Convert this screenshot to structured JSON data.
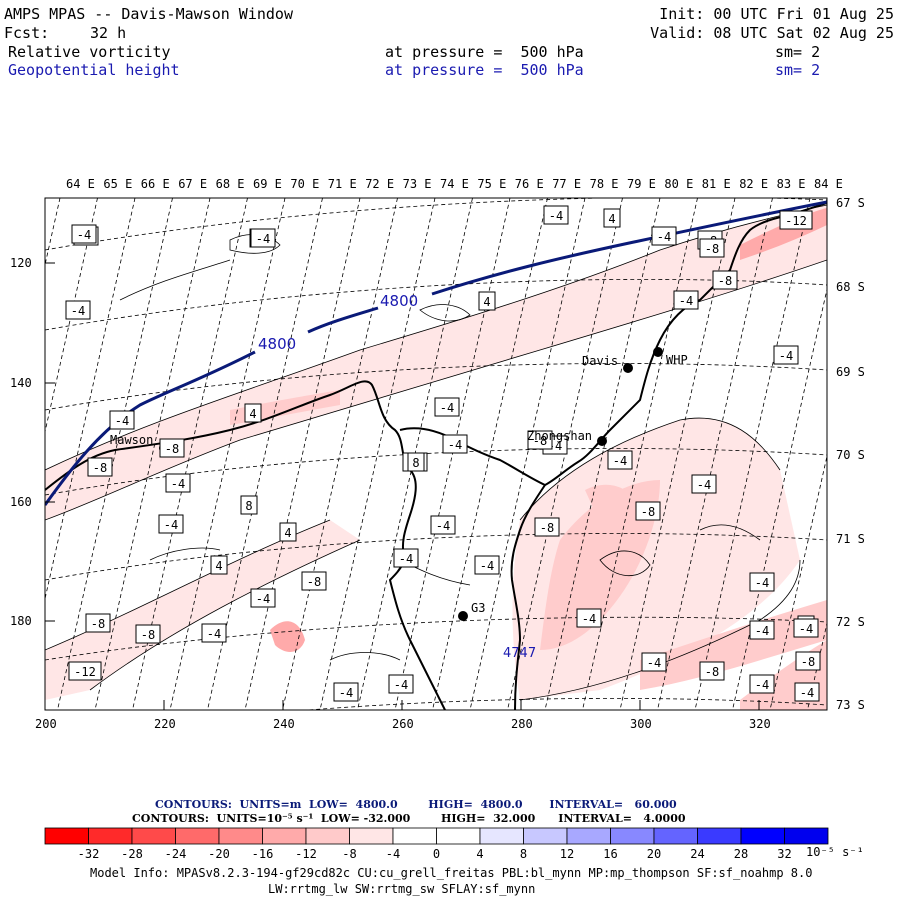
{
  "header": {
    "title": "AMPS MPAS -- Davis-Mawson Window",
    "fcst_label": "Fcst:",
    "fcst_value": "32 h",
    "init": "Init: 00 UTC Fri 01 Aug 25",
    "valid": "Valid: 08 UTC Sat 02 Aug 25",
    "field1": "Relative vorticity",
    "field2": "Geopotential height",
    "pressure_text": "at pressure =  500 hPa",
    "sm_text": "sm= 2"
  },
  "map": {
    "lon_labels": [
      "64 E",
      "65 E",
      "66 E",
      "67 E",
      "68 E",
      "69 E",
      "70 E",
      "71 E",
      "72 E",
      "73 E",
      "74 E",
      "75 E",
      "76 E",
      "77 E",
      "78 E",
      "79 E",
      "80 E",
      "81 E",
      "82 E",
      "83 E",
      "84 E"
    ],
    "lat_labels": [
      "67 S",
      "68 S",
      "69 S",
      "70 S",
      "71 S",
      "72 S",
      "73 S"
    ],
    "x_ticks": [
      "200",
      "220",
      "240",
      "260",
      "280",
      "300",
      "320"
    ],
    "y_ticks": [
      "120",
      "140",
      "160",
      "180"
    ],
    "stations": [
      {
        "name": "Mawson"
      },
      {
        "name": "Davis"
      },
      {
        "name": "WHP"
      },
      {
        "name": "Zhongshan"
      },
      {
        "name": "G3"
      }
    ],
    "height_labels": [
      "4800",
      "4800",
      "4747"
    ],
    "vort_labels": [
      "-4",
      "-4",
      "-4",
      "4",
      "-4",
      "4",
      "-8",
      "-12",
      "-4",
      "-8",
      "-4",
      "-4",
      "-4",
      "4",
      "-4",
      "-4",
      "-8",
      "-4",
      "-8",
      "-4",
      "-4",
      "-4",
      "8",
      "-4",
      "4",
      "-8",
      "-8",
      "-4",
      "4",
      "-4",
      "-4",
      "-8",
      "-4",
      "-4",
      "-8",
      "-4",
      "-8",
      "-4",
      "4",
      "-4",
      "-8",
      "-4",
      "-12",
      "-8",
      "-4",
      "-4",
      "-4",
      "-4",
      "8",
      "-8",
      "-4",
      "-8",
      "-4",
      "-4",
      "-4"
    ],
    "colors": {
      "height_contour": "#0a1a78",
      "coast": "#000000",
      "shade_light": "#ffe6e6",
      "shade_mid": "#ffcccc",
      "shade_dark": "#ffa8a8"
    }
  },
  "footer": {
    "contours1": "CONTOURS:  UNITS=m  LOW=  4800.0        HIGH=  4800.0       INTERVAL=   60.000",
    "contours2": "CONTOURS:  UNITS=10⁻⁵ s⁻¹  LOW= -32.000        HIGH=  32.000      INTERVAL=   4.0000",
    "colorbar_labels": [
      "-32",
      "-28",
      "-24",
      "-20",
      "-16",
      "-12",
      "-8",
      "-4",
      "0",
      "4",
      "8",
      "12",
      "16",
      "20",
      "24",
      "28",
      "32"
    ],
    "colorbar_unit": "10⁻⁵ s⁻¹",
    "colorbar_colors": [
      "#ff0000",
      "#ff2a2a",
      "#ff4a4a",
      "#ff6a6a",
      "#ff8a8a",
      "#ffaaaa",
      "#ffcaca",
      "#ffe6e6",
      "#ffffff",
      "#ffffff",
      "#e6e6ff",
      "#c8c8ff",
      "#a8a8ff",
      "#8888ff",
      "#6464ff",
      "#3a3aff",
      "#0000ff",
      "#0000ee"
    ],
    "model_info": "Model Info: MPASv8.2.3-194-gf29cd82c CU:cu_grell_freitas PBL:bl_mynn MP:mp_thompson SF:sf_noahmp 8.0",
    "model_info2": "LW:rrtmg_lw SW:rrtmg_sw SFLAY:sf_mynn"
  }
}
